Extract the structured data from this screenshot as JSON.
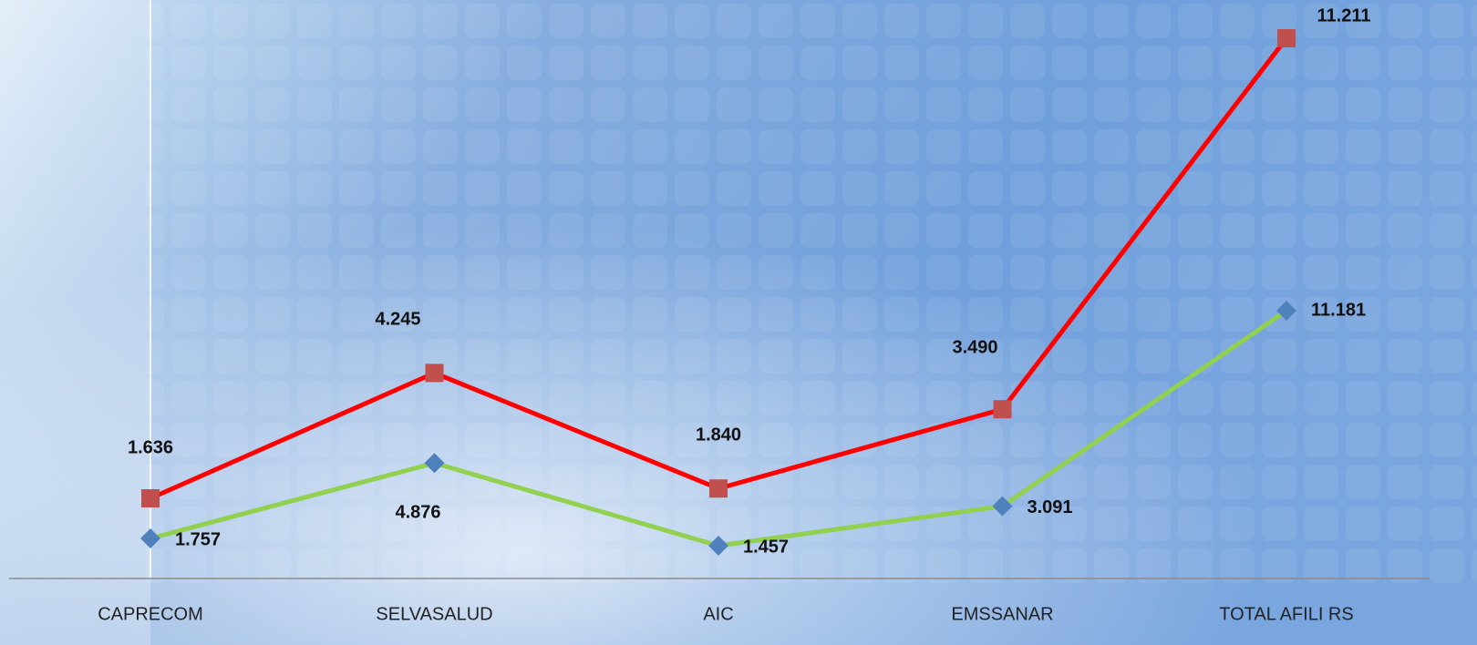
{
  "chart_data": {
    "type": "line",
    "categories": [
      "CAPRECOM",
      "SELVASALUD",
      "AIC",
      "EMSSANAR",
      "TOTAL AFILI RS"
    ],
    "series": [
      {
        "color": "#ff0000",
        "marker_color": "#c0504d",
        "marker": "square",
        "values": [
          1636,
          4245,
          1840,
          3490,
          11211
        ],
        "value_labels": [
          "1.636",
          "4.245",
          "1.840",
          "3.490",
          "11.211"
        ]
      },
      {
        "color": "#92d050",
        "marker_color": "#4f81bd",
        "marker": "diamond",
        "axis": "y2",
        "values": [
          1757,
          4876,
          1457,
          3091,
          11181
        ],
        "value_labels": [
          "1.757",
          "4.876",
          "1.457",
          "3.091",
          "11.181"
        ]
      }
    ]
  }
}
